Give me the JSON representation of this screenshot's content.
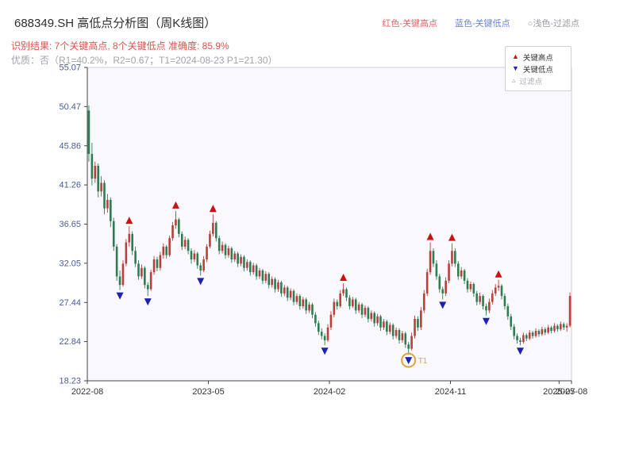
{
  "header": {
    "title": "688349.SH 高低点分析图（周K线图）",
    "legend_top": {
      "red_label": "红色-关键高点",
      "blue_label": "蓝色-关键低点",
      "light_label": "○浅色-过滤点"
    },
    "result_line": "识别结果: 7个关键高点, 8个关键低点  准确度: 85.9%",
    "quality_line": "优质：否（R1=40.2%，R2=0.67；T1=2024-08-23 P1=21.30）"
  },
  "chart_legend": {
    "items": [
      {
        "icon": "up-triangle",
        "label": "关键高点",
        "color": "#cc1111"
      },
      {
        "icon": "down-triangle",
        "label": "关键低点",
        "color": "#2020b0"
      },
      {
        "icon": "outline-triangle",
        "label": "过滤点",
        "color": "#aaaaaa"
      }
    ]
  },
  "chart_data": {
    "type": "candlestick",
    "title": "688349.SH 高低点分析图（周K线图）",
    "interval": "weekly",
    "ylim": [
      18.23,
      55.07
    ],
    "yticks": [
      18.23,
      22.84,
      27.44,
      32.05,
      36.65,
      41.26,
      45.86,
      50.47,
      55.07
    ],
    "xticks": [
      {
        "index": 0,
        "label": "2022-08"
      },
      {
        "index": 39,
        "label": "2023-05"
      },
      {
        "index": 78,
        "label": "2024-02"
      },
      {
        "index": 117,
        "label": "2024-11"
      },
      {
        "index": 152,
        "label": "2025-07"
      },
      {
        "index": 156,
        "label": "2025-08"
      }
    ],
    "candles": [
      [
        50.0,
        50.6,
        44.0,
        44.9
      ],
      [
        44.9,
        46.2,
        41.2,
        42.0
      ],
      [
        42.0,
        44.0,
        41.5,
        43.5
      ],
      [
        43.5,
        43.8,
        39.8,
        40.5
      ],
      [
        40.5,
        42.3,
        39.9,
        41.5
      ],
      [
        41.5,
        41.8,
        37.8,
        38.5
      ],
      [
        38.5,
        40.2,
        38.0,
        39.5
      ],
      [
        39.5,
        39.8,
        36.3,
        37.0
      ],
      [
        37.0,
        37.4,
        33.5,
        34.0
      ],
      [
        34.0,
        34.3,
        30.0,
        30.5
      ],
      [
        30.5,
        31.2,
        28.9,
        29.5
      ],
      [
        29.5,
        32.4,
        29.3,
        32.0
      ],
      [
        32.0,
        34.9,
        31.7,
        34.5
      ],
      [
        34.5,
        36.4,
        34.0,
        35.5
      ],
      [
        35.5,
        35.8,
        33.0,
        33.5
      ],
      [
        33.5,
        34.0,
        31.6,
        32.0
      ],
      [
        32.0,
        32.4,
        30.1,
        30.5
      ],
      [
        30.5,
        31.9,
        30.2,
        31.5
      ],
      [
        31.5,
        31.7,
        29.1,
        29.5
      ],
      [
        29.5,
        29.8,
        28.2,
        29.0
      ],
      [
        29.0,
        31.3,
        28.8,
        31.0
      ],
      [
        31.0,
        32.9,
        30.7,
        32.5
      ],
      [
        32.5,
        32.8,
        31.1,
        31.5
      ],
      [
        31.5,
        33.4,
        31.2,
        33.0
      ],
      [
        33.0,
        34.4,
        32.6,
        34.0
      ],
      [
        34.0,
        34.2,
        32.6,
        33.0
      ],
      [
        33.0,
        35.3,
        32.8,
        35.0
      ],
      [
        35.0,
        36.9,
        34.7,
        36.5
      ],
      [
        36.5,
        38.2,
        36.1,
        37.2
      ],
      [
        37.2,
        37.4,
        35.1,
        35.5
      ],
      [
        35.5,
        35.8,
        33.6,
        34.0
      ],
      [
        34.0,
        35.2,
        33.7,
        34.8
      ],
      [
        34.8,
        35.0,
        33.1,
        33.5
      ],
      [
        33.5,
        33.8,
        32.0,
        32.5
      ],
      [
        32.5,
        33.6,
        32.2,
        33.2
      ],
      [
        33.2,
        33.4,
        31.4,
        31.8
      ],
      [
        31.8,
        32.1,
        30.6,
        31.2
      ],
      [
        31.2,
        32.9,
        31.0,
        32.5
      ],
      [
        32.5,
        34.3,
        32.2,
        34.0
      ],
      [
        34.0,
        35.9,
        33.8,
        35.5
      ],
      [
        35.5,
        37.8,
        35.2,
        36.8
      ],
      [
        36.8,
        37.0,
        34.6,
        35.0
      ],
      [
        35.0,
        35.3,
        33.1,
        33.5
      ],
      [
        33.5,
        34.6,
        33.2,
        34.2
      ],
      [
        34.2,
        34.4,
        32.6,
        33.0
      ],
      [
        33.0,
        34.1,
        32.7,
        33.8
      ],
      [
        33.8,
        34.0,
        32.1,
        32.5
      ],
      [
        32.5,
        33.5,
        32.2,
        33.2
      ],
      [
        33.2,
        33.4,
        31.6,
        32.0
      ],
      [
        32.0,
        33.1,
        31.7,
        32.8
      ],
      [
        32.8,
        33.0,
        31.1,
        31.5
      ],
      [
        31.5,
        32.5,
        31.2,
        32.2
      ],
      [
        32.2,
        32.4,
        30.6,
        31.0
      ],
      [
        31.0,
        32.1,
        30.7,
        31.8
      ],
      [
        31.8,
        32.0,
        30.1,
        30.5
      ],
      [
        30.5,
        31.5,
        30.2,
        31.2
      ],
      [
        31.2,
        31.4,
        29.6,
        30.0
      ],
      [
        30.0,
        31.1,
        29.7,
        30.8
      ],
      [
        30.8,
        31.0,
        29.1,
        29.5
      ],
      [
        29.5,
        30.5,
        29.2,
        30.2
      ],
      [
        30.2,
        30.4,
        28.6,
        29.0
      ],
      [
        29.0,
        30.1,
        28.7,
        29.8
      ],
      [
        29.8,
        30.0,
        28.1,
        28.5
      ],
      [
        28.5,
        29.5,
        28.2,
        29.2
      ],
      [
        29.2,
        29.4,
        27.6,
        28.0
      ],
      [
        28.0,
        29.1,
        27.7,
        28.8
      ],
      [
        28.8,
        29.0,
        27.1,
        27.5
      ],
      [
        27.5,
        28.5,
        27.2,
        28.2
      ],
      [
        28.2,
        28.4,
        26.6,
        27.0
      ],
      [
        27.0,
        28.1,
        26.7,
        27.8
      ],
      [
        27.8,
        28.0,
        26.1,
        26.5
      ],
      [
        26.5,
        27.5,
        26.2,
        27.2
      ],
      [
        27.2,
        27.4,
        25.6,
        26.0
      ],
      [
        26.0,
        26.3,
        24.6,
        25.0
      ],
      [
        25.0,
        25.3,
        23.6,
        24.0
      ],
      [
        24.0,
        24.4,
        23.1,
        23.5
      ],
      [
        23.5,
        23.8,
        22.4,
        23.0
      ],
      [
        23.0,
        24.9,
        22.8,
        24.5
      ],
      [
        24.5,
        26.4,
        24.2,
        26.0
      ],
      [
        26.0,
        27.9,
        25.7,
        27.5
      ],
      [
        27.5,
        27.8,
        26.6,
        27.0
      ],
      [
        27.0,
        28.9,
        26.8,
        28.5
      ],
      [
        28.5,
        29.7,
        28.2,
        29.0
      ],
      [
        29.0,
        29.2,
        27.6,
        28.0
      ],
      [
        28.0,
        28.3,
        26.6,
        27.0
      ],
      [
        27.0,
        28.1,
        26.8,
        27.8
      ],
      [
        27.8,
        28.0,
        26.1,
        26.5
      ],
      [
        26.5,
        27.5,
        26.2,
        27.2
      ],
      [
        27.2,
        27.4,
        25.6,
        26.0
      ],
      [
        26.0,
        27.1,
        25.7,
        26.8
      ],
      [
        26.8,
        27.0,
        25.1,
        25.5
      ],
      [
        25.5,
        26.5,
        25.2,
        26.2
      ],
      [
        26.2,
        26.4,
        24.6,
        25.0
      ],
      [
        25.0,
        26.1,
        24.7,
        25.8
      ],
      [
        25.8,
        26.0,
        24.1,
        24.5
      ],
      [
        24.5,
        25.5,
        24.2,
        25.2
      ],
      [
        25.2,
        25.4,
        23.6,
        24.0
      ],
      [
        24.0,
        25.1,
        23.7,
        24.8
      ],
      [
        24.8,
        25.0,
        23.1,
        23.5
      ],
      [
        23.5,
        24.5,
        23.2,
        24.2
      ],
      [
        24.2,
        24.4,
        22.6,
        23.0
      ],
      [
        23.0,
        24.1,
        22.7,
        23.8
      ],
      [
        23.8,
        24.0,
        22.1,
        22.5
      ],
      [
        22.5,
        22.8,
        21.3,
        22.0
      ],
      [
        22.0,
        23.9,
        21.8,
        23.5
      ],
      [
        23.5,
        25.9,
        23.2,
        25.5
      ],
      [
        25.5,
        25.8,
        24.1,
        24.5
      ],
      [
        24.5,
        26.9,
        24.2,
        26.5
      ],
      [
        26.5,
        28.9,
        26.2,
        28.5
      ],
      [
        28.5,
        31.4,
        28.2,
        31.0
      ],
      [
        31.0,
        34.5,
        30.7,
        33.5
      ],
      [
        33.5,
        33.8,
        31.6,
        32.0
      ],
      [
        32.0,
        32.4,
        30.1,
        30.5
      ],
      [
        30.5,
        30.8,
        28.6,
        29.0
      ],
      [
        29.0,
        29.3,
        27.8,
        28.5
      ],
      [
        28.5,
        30.4,
        28.2,
        30.0
      ],
      [
        30.0,
        32.4,
        29.7,
        32.0
      ],
      [
        32.0,
        34.4,
        31.7,
        33.5
      ],
      [
        33.5,
        33.8,
        31.6,
        32.0
      ],
      [
        32.0,
        32.3,
        30.1,
        30.5
      ],
      [
        30.5,
        31.6,
        30.2,
        31.2
      ],
      [
        31.2,
        31.4,
        29.6,
        30.0
      ],
      [
        30.0,
        30.3,
        28.6,
        29.0
      ],
      [
        29.0,
        29.9,
        28.7,
        29.6
      ],
      [
        29.6,
        29.8,
        28.1,
        28.5
      ],
      [
        28.5,
        28.8,
        27.1,
        27.5
      ],
      [
        27.5,
        28.6,
        27.2,
        28.2
      ],
      [
        28.2,
        28.4,
        26.6,
        27.0
      ],
      [
        27.0,
        27.3,
        25.9,
        26.5
      ],
      [
        26.5,
        27.9,
        26.2,
        27.5
      ],
      [
        27.5,
        28.9,
        27.2,
        28.5
      ],
      [
        28.5,
        29.6,
        28.2,
        29.2
      ],
      [
        29.2,
        30.1,
        28.8,
        29.4
      ],
      [
        29.4,
        29.6,
        27.8,
        28.2
      ],
      [
        28.2,
        28.5,
        26.6,
        27.0
      ],
      [
        27.0,
        27.3,
        25.4,
        25.8
      ],
      [
        25.8,
        26.1,
        24.2,
        24.6
      ],
      [
        24.6,
        24.9,
        23.1,
        23.5
      ],
      [
        23.5,
        23.8,
        22.6,
        23.0
      ],
      [
        23.0,
        23.3,
        22.4,
        22.8
      ],
      [
        22.8,
        23.9,
        22.6,
        23.6
      ],
      [
        23.6,
        23.8,
        22.9,
        23.2
      ],
      [
        23.2,
        24.2,
        23.0,
        23.9
      ],
      [
        23.9,
        24.1,
        23.2,
        23.5
      ],
      [
        23.5,
        24.4,
        23.3,
        24.1
      ],
      [
        24.1,
        24.3,
        23.4,
        23.7
      ],
      [
        23.7,
        24.6,
        23.5,
        24.3
      ],
      [
        24.3,
        24.5,
        23.6,
        23.9
      ],
      [
        23.9,
        24.8,
        23.7,
        24.5
      ],
      [
        24.5,
        24.7,
        23.8,
        24.1
      ],
      [
        24.1,
        25.0,
        23.9,
        24.7
      ],
      [
        24.7,
        24.9,
        24.0,
        24.3
      ],
      [
        24.3,
        25.2,
        24.1,
        24.9
      ],
      [
        24.9,
        25.1,
        24.2,
        24.5
      ],
      [
        24.5,
        25.0,
        24.0,
        24.7
      ],
      [
        24.7,
        28.6,
        24.5,
        28.2
      ]
    ],
    "key_highs": [
      [
        13,
        36.4
      ],
      [
        28,
        38.2
      ],
      [
        40,
        37.8
      ],
      [
        82,
        29.7
      ],
      [
        110,
        34.5
      ],
      [
        117,
        34.4
      ],
      [
        132,
        30.1
      ]
    ],
    "key_lows": [
      [
        10,
        28.9
      ],
      [
        19,
        28.2
      ],
      [
        36,
        30.6
      ],
      [
        76,
        22.4
      ],
      [
        103,
        21.3
      ],
      [
        114,
        27.8
      ],
      [
        128,
        25.9
      ],
      [
        139,
        22.4
      ]
    ],
    "filtered_point": {
      "index": 103,
      "price": 21.3,
      "label": "T1",
      "date": "2024-08-23"
    },
    "stats": {
      "key_high_count": 7,
      "key_low_count": 8,
      "accuracy_pct": 85.9,
      "R1_pct": 40.2,
      "R2": 0.67,
      "T1_date": "2024-08-23",
      "P1": 21.3
    },
    "colors": {
      "up": "#b8403c",
      "down": "#2e7d52",
      "key_high": "#cc1111",
      "key_low": "#2020b0",
      "filtered": "#e2a23e",
      "plot_bg": "#f8f8fd",
      "plot_border": "#ccccda",
      "axis": "#444444",
      "ytick_label": "#4a5a9c",
      "xtick_label": "#333333"
    },
    "legend_position": "upper-right",
    "grid": false
  }
}
